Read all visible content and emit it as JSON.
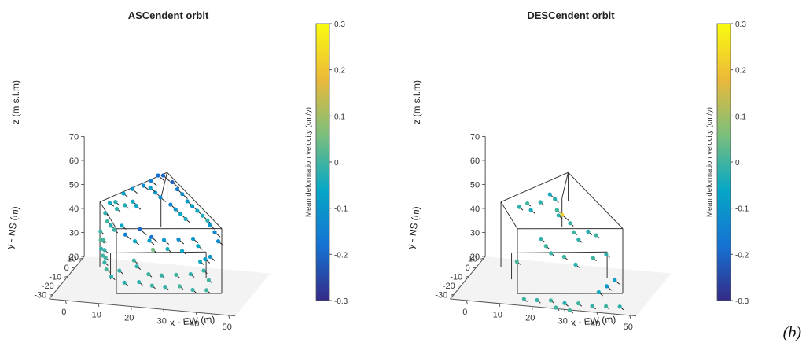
{
  "figure_label": "(b)",
  "chart_data": [
    {
      "type": "scatter",
      "title": "ASCendent orbit",
      "xlabel": "x - EW (m)",
      "ylabel": "y - NS (m)",
      "zlabel": "z (m s.l.m)",
      "xticks": [
        0,
        10,
        20,
        30,
        40,
        50
      ],
      "yticks": [
        10,
        0,
        -10,
        -20,
        -30
      ],
      "zticks": [
        20,
        30,
        40,
        50,
        60,
        70
      ],
      "xlim": [
        -5,
        52
      ],
      "ylim": [
        -35,
        12
      ],
      "zlim": [
        20,
        70
      ],
      "colorbar": {
        "label": "Mean deformation velocity (cm/y)",
        "range": [
          -0.3,
          0.3
        ],
        "ticks": [
          "0.3",
          "0.2",
          "0.1",
          "0",
          "-0.1",
          "-0.2",
          "-0.3"
        ]
      },
      "building_edges": [
        [
          [
            3,
            -2,
            49
          ],
          [
            14,
            -28,
            49
          ]
        ],
        [
          [
            14,
            -28,
            49
          ],
          [
            44,
            -18,
            49
          ]
        ],
        [
          [
            3,
            -2,
            49
          ],
          [
            22,
            5,
            61
          ]
        ],
        [
          [
            22,
            5,
            61
          ],
          [
            44,
            -18,
            49
          ]
        ],
        [
          [
            24,
            -12,
            57
          ],
          [
            22,
            5,
            61
          ]
        ],
        [
          [
            3,
            -2,
            49
          ],
          [
            3,
            -2,
            22
          ]
        ],
        [
          [
            14,
            -28,
            49
          ],
          [
            14,
            -28,
            22
          ]
        ],
        [
          [
            44,
            -18,
            49
          ],
          [
            44,
            -18,
            22
          ]
        ],
        [
          [
            22,
            5,
            61
          ],
          [
            22,
            5,
            49
          ]
        ],
        [
          [
            24,
            -12,
            57
          ],
          [
            24,
            -12,
            45
          ]
        ],
        [
          [
            14,
            -28,
            22
          ],
          [
            44,
            -18,
            22
          ]
        ],
        [
          [
            9,
            -14,
            33
          ],
          [
            36,
            -4,
            33
          ]
        ],
        [
          [
            9,
            -14,
            33
          ],
          [
            9,
            -14,
            22
          ]
        ],
        [
          [
            36,
            -4,
            33
          ],
          [
            36,
            -4,
            22
          ]
        ]
      ],
      "points": [
        [
          6,
          -2,
          49,
          -0.05
        ],
        [
          8,
          -3,
          50,
          -0.02
        ],
        [
          10,
          -1,
          53,
          -0.08
        ],
        [
          12,
          2,
          54,
          -0.1
        ],
        [
          15,
          4,
          55,
          -0.12
        ],
        [
          17,
          5,
          57,
          -0.15
        ],
        [
          19,
          6,
          59,
          -0.18
        ],
        [
          21,
          4,
          60,
          -0.2
        ],
        [
          24,
          3,
          58,
          -0.22
        ],
        [
          26,
          1,
          56,
          -0.16
        ],
        [
          28,
          -1,
          55,
          -0.12
        ],
        [
          30,
          -3,
          53,
          -0.1
        ],
        [
          32,
          -5,
          52,
          -0.08
        ],
        [
          34,
          -7,
          51,
          -0.05
        ],
        [
          36,
          -9,
          50,
          -0.04
        ],
        [
          38,
          -11,
          49,
          -0.02
        ],
        [
          20,
          -2,
          55,
          -0.1
        ],
        [
          22,
          -4,
          54,
          -0.12
        ],
        [
          18,
          0,
          56,
          -0.08
        ],
        [
          14,
          -6,
          52,
          -0.05
        ],
        [
          12,
          -8,
          51,
          -0.03
        ],
        [
          10,
          -10,
          50,
          -0.02
        ],
        [
          16,
          -10,
          52,
          -0.06
        ],
        [
          26,
          -8,
          53,
          -0.14
        ],
        [
          28,
          -10,
          52,
          -0.1
        ],
        [
          30,
          -12,
          51,
          -0.06
        ],
        [
          32,
          -14,
          50,
          -0.04
        ],
        [
          6,
          -8,
          47,
          -0.02
        ],
        [
          8,
          -14,
          46,
          0.0
        ],
        [
          10,
          -18,
          46,
          -0.03
        ],
        [
          12,
          -22,
          46,
          -0.01
        ],
        [
          5,
          -10,
          40,
          0.0
        ],
        [
          6,
          -14,
          38,
          0.02
        ],
        [
          7,
          -18,
          36,
          -0.02
        ],
        [
          8,
          -20,
          34,
          0.0
        ],
        [
          9,
          -22,
          32,
          -0.01
        ],
        [
          10,
          -24,
          30,
          0.01
        ],
        [
          12,
          -26,
          28,
          -0.02
        ],
        [
          5,
          -6,
          35,
          0.0
        ],
        [
          6,
          -9,
          32,
          -0.01
        ],
        [
          7,
          -12,
          30,
          0.0
        ],
        [
          16,
          -12,
          38,
          -0.05
        ],
        [
          20,
          -10,
          38,
          -0.08
        ],
        [
          24,
          -8,
          38,
          -0.1
        ],
        [
          28,
          -6,
          38,
          -0.12
        ],
        [
          32,
          -4,
          38,
          -0.1
        ],
        [
          34,
          -6,
          36,
          -0.06
        ],
        [
          22,
          -14,
          36,
          0.05
        ],
        [
          26,
          -12,
          36,
          -0.04
        ],
        [
          30,
          -10,
          35,
          -0.06
        ],
        [
          18,
          -18,
          30,
          -0.02
        ],
        [
          22,
          -20,
          28,
          0.0
        ],
        [
          26,
          -20,
          28,
          -0.01
        ],
        [
          30,
          -18,
          28,
          0.0
        ],
        [
          34,
          -16,
          28,
          -0.02
        ],
        [
          38,
          -16,
          30,
          -0.01
        ],
        [
          40,
          -18,
          27,
          0.0
        ],
        [
          20,
          -24,
          26,
          -0.02
        ],
        [
          24,
          -24,
          25,
          0.0
        ],
        [
          28,
          -24,
          25,
          -0.01
        ],
        [
          32,
          -22,
          25,
          0.01
        ],
        [
          36,
          -22,
          24,
          -0.01
        ],
        [
          40,
          -21,
          24,
          0.0
        ],
        [
          16,
          -26,
          26,
          -0.02
        ],
        [
          14,
          -24,
          30,
          -0.01
        ],
        [
          18,
          -22,
          34,
          0.0
        ],
        [
          36,
          -12,
          32,
          -0.05
        ],
        [
          38,
          -14,
          34,
          -0.08
        ],
        [
          40,
          -16,
          36,
          -0.1
        ],
        [
          42,
          -14,
          42,
          -0.12
        ],
        [
          40,
          -10,
          44,
          -0.14
        ],
        [
          38,
          -8,
          46,
          -0.1
        ],
        [
          14,
          -16,
          42,
          -0.15
        ],
        [
          18,
          -14,
          44,
          -0.2
        ],
        [
          22,
          -16,
          42,
          -0.18
        ],
        [
          12,
          -12,
          44,
          -0.06
        ]
      ]
    },
    {
      "type": "scatter",
      "title": "DESCendent orbit",
      "xlabel": "x - EW (m)",
      "ylabel": "y - NS (m)",
      "zlabel": "z (m s.l.m)",
      "xticks": [
        0,
        10,
        20,
        30,
        40,
        50
      ],
      "yticks": [
        10,
        0,
        -10,
        -20,
        -30
      ],
      "zticks": [
        20,
        30,
        40,
        50,
        60,
        70
      ],
      "xlim": [
        -5,
        52
      ],
      "ylim": [
        -35,
        12
      ],
      "zlim": [
        20,
        70
      ],
      "colorbar": {
        "label": "Mean deformation velocity (cm/y)",
        "range": [
          -0.3,
          0.3
        ],
        "ticks": [
          "0.3",
          "0.2",
          "0.1",
          "0",
          "-0.1",
          "-0.2",
          "-0.3"
        ]
      },
      "building_edges": [
        [
          [
            3,
            -2,
            49
          ],
          [
            14,
            -28,
            49
          ]
        ],
        [
          [
            14,
            -28,
            49
          ],
          [
            44,
            -18,
            49
          ]
        ],
        [
          [
            3,
            -2,
            49
          ],
          [
            22,
            5,
            61
          ]
        ],
        [
          [
            22,
            5,
            61
          ],
          [
            44,
            -18,
            49
          ]
        ],
        [
          [
            24,
            -12,
            57
          ],
          [
            22,
            5,
            61
          ]
        ],
        [
          [
            3,
            -2,
            49
          ],
          [
            3,
            -2,
            22
          ]
        ],
        [
          [
            14,
            -28,
            49
          ],
          [
            14,
            -28,
            22
          ]
        ],
        [
          [
            44,
            -18,
            49
          ],
          [
            44,
            -18,
            22
          ]
        ],
        [
          [
            22,
            5,
            61
          ],
          [
            22,
            5,
            49
          ]
        ],
        [
          [
            24,
            -12,
            57
          ],
          [
            24,
            -12,
            45
          ]
        ],
        [
          [
            14,
            -28,
            22
          ],
          [
            44,
            -18,
            22
          ]
        ],
        [
          [
            9,
            -14,
            33
          ],
          [
            36,
            -4,
            33
          ]
        ],
        [
          [
            9,
            -14,
            33
          ],
          [
            9,
            -14,
            22
          ]
        ],
        [
          [
            36,
            -4,
            33
          ],
          [
            36,
            -4,
            22
          ]
        ]
      ],
      "points": [
        [
          10,
          -8,
          50,
          -0.02
        ],
        [
          12,
          -6,
          51,
          0.0
        ],
        [
          14,
          -10,
          50,
          -0.04
        ],
        [
          16,
          -6,
          52,
          -0.02
        ],
        [
          18,
          -2,
          54,
          -0.05
        ],
        [
          20,
          -4,
          53,
          -0.03
        ],
        [
          22,
          -10,
          51,
          0.0
        ],
        [
          24,
          -12,
          50,
          0.22
        ],
        [
          22,
          -8,
          48,
          -0.02
        ],
        [
          26,
          -10,
          46,
          -0.01
        ],
        [
          28,
          -14,
          44,
          0.0
        ],
        [
          30,
          -16,
          42,
          -0.02
        ],
        [
          32,
          -12,
          44,
          -0.03
        ],
        [
          34,
          -10,
          42,
          0.0
        ],
        [
          18,
          -14,
          40,
          -0.02
        ],
        [
          20,
          -16,
          38,
          0.0
        ],
        [
          22,
          -18,
          36,
          -0.01
        ],
        [
          26,
          -18,
          35,
          0.0
        ],
        [
          30,
          -20,
          33,
          -0.02
        ],
        [
          34,
          -14,
          34,
          0.0
        ],
        [
          38,
          -14,
          36,
          -0.02
        ],
        [
          12,
          -20,
          32,
          0.01
        ],
        [
          40,
          -22,
          26,
          -0.1
        ],
        [
          42,
          -20,
          28,
          -0.08
        ],
        [
          38,
          -24,
          24,
          -0.05
        ],
        [
          16,
          -28,
          20,
          0.0
        ],
        [
          20,
          -28,
          20,
          -0.01
        ],
        [
          24,
          -27,
          20,
          0.0
        ],
        [
          28,
          -26,
          19,
          -0.02
        ],
        [
          32,
          -25,
          19,
          0.0
        ],
        [
          36,
          -24,
          18,
          -0.01
        ],
        [
          40,
          -23,
          18,
          0.0
        ],
        [
          44,
          -22,
          18,
          -0.02
        ],
        [
          26,
          -29,
          18,
          0.0
        ],
        [
          30,
          -28,
          17,
          0.01
        ]
      ]
    }
  ]
}
